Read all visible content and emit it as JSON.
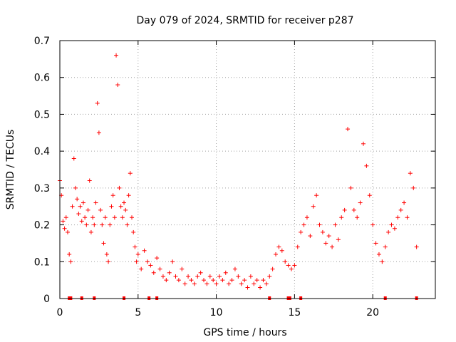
{
  "chart_data": {
    "type": "scatter",
    "title": "Day 079 of 2024, SRMTID for receiver p287",
    "xlabel": "GPS time / hours",
    "ylabel": "SRMTID / TECUs",
    "xlim": [
      0,
      24
    ],
    "ylim": [
      0,
      0.7
    ],
    "xticks": [
      0,
      5,
      10,
      15,
      20
    ],
    "xtick_labels": [
      "0",
      "5",
      "10",
      "15",
      "20"
    ],
    "yticks": [
      0,
      0.1,
      0.2,
      0.3,
      0.4,
      0.5,
      0.6,
      0.7
    ],
    "ytick_labels": [
      "0",
      "0.1",
      "0.2",
      "0.3",
      "0.4",
      "0.5",
      "0.6",
      "0.7"
    ],
    "grid": true,
    "marker": "+",
    "series_color": "#ff0000",
    "series": [
      {
        "name": "SRMTID",
        "x": [
          0.0,
          0.1,
          0.2,
          0.3,
          0.4,
          0.5,
          0.6,
          0.7,
          0.8,
          0.9,
          1.0,
          1.1,
          1.2,
          1.3,
          1.4,
          1.5,
          1.6,
          1.7,
          1.8,
          1.9,
          2.0,
          2.1,
          2.2,
          2.3,
          2.4,
          2.5,
          2.6,
          2.7,
          2.8,
          2.9,
          3.0,
          3.1,
          3.2,
          3.3,
          3.4,
          3.5,
          3.6,
          3.7,
          3.8,
          3.9,
          4.0,
          4.1,
          4.2,
          4.3,
          4.4,
          4.5,
          4.6,
          4.7,
          4.8,
          4.9,
          5.0,
          5.2,
          5.4,
          5.6,
          5.8,
          6.0,
          6.2,
          6.4,
          6.6,
          6.8,
          7.0,
          7.2,
          7.4,
          7.6,
          7.8,
          8.0,
          8.2,
          8.4,
          8.6,
          8.8,
          9.0,
          9.2,
          9.4,
          9.6,
          9.8,
          10.0,
          10.2,
          10.4,
          10.6,
          10.8,
          11.0,
          11.2,
          11.4,
          11.6,
          11.8,
          12.0,
          12.2,
          12.4,
          12.6,
          12.8,
          13.0,
          13.2,
          13.4,
          13.6,
          13.8,
          14.0,
          14.2,
          14.4,
          14.6,
          14.8,
          15.0,
          15.2,
          15.4,
          15.6,
          15.8,
          16.0,
          16.2,
          16.4,
          16.6,
          16.8,
          17.0,
          17.2,
          17.4,
          17.6,
          17.8,
          18.0,
          18.2,
          18.4,
          18.6,
          18.8,
          19.0,
          19.2,
          19.4,
          19.6,
          19.8,
          20.0,
          20.2,
          20.4,
          20.6,
          20.8,
          21.0,
          21.2,
          21.4,
          21.6,
          21.8,
          22.0,
          22.2,
          22.4,
          22.6,
          22.8
        ],
        "y": [
          0.32,
          0.28,
          0.21,
          0.19,
          0.22,
          0.18,
          0.12,
          0.1,
          0.25,
          0.38,
          0.3,
          0.27,
          0.23,
          0.25,
          0.21,
          0.26,
          0.22,
          0.2,
          0.24,
          0.32,
          0.18,
          0.22,
          0.2,
          0.26,
          0.53,
          0.45,
          0.24,
          0.2,
          0.15,
          0.22,
          0.12,
          0.1,
          0.2,
          0.25,
          0.28,
          0.22,
          0.66,
          0.58,
          0.3,
          0.25,
          0.22,
          0.26,
          0.24,
          0.2,
          0.28,
          0.34,
          0.22,
          0.18,
          0.14,
          0.1,
          0.12,
          0.08,
          0.13,
          0.1,
          0.09,
          0.07,
          0.11,
          0.08,
          0.06,
          0.05,
          0.07,
          0.1,
          0.06,
          0.05,
          0.08,
          0.04,
          0.06,
          0.05,
          0.04,
          0.06,
          0.07,
          0.05,
          0.04,
          0.06,
          0.05,
          0.04,
          0.06,
          0.05,
          0.07,
          0.04,
          0.05,
          0.08,
          0.06,
          0.04,
          0.05,
          0.03,
          0.06,
          0.04,
          0.05,
          0.03,
          0.05,
          0.04,
          0.06,
          0.08,
          0.12,
          0.14,
          0.13,
          0.1,
          0.09,
          0.08,
          0.09,
          0.14,
          0.18,
          0.2,
          0.22,
          0.17,
          0.25,
          0.28,
          0.2,
          0.18,
          0.15,
          0.17,
          0.14,
          0.2,
          0.16,
          0.22,
          0.24,
          0.46,
          0.3,
          0.24,
          0.22,
          0.26,
          0.42,
          0.36,
          0.28,
          0.2,
          0.15,
          0.12,
          0.1,
          0.14,
          0.18,
          0.2,
          0.19,
          0.22,
          0.24,
          0.26,
          0.22,
          0.34,
          0.3,
          0.14
        ]
      }
    ],
    "gap_marks_x": [
      0.6,
      0.7,
      1.4,
      2.2,
      4.1,
      5.7,
      6.2,
      13.4,
      14.6,
      14.7,
      15.4,
      20.8,
      22.8
    ]
  }
}
